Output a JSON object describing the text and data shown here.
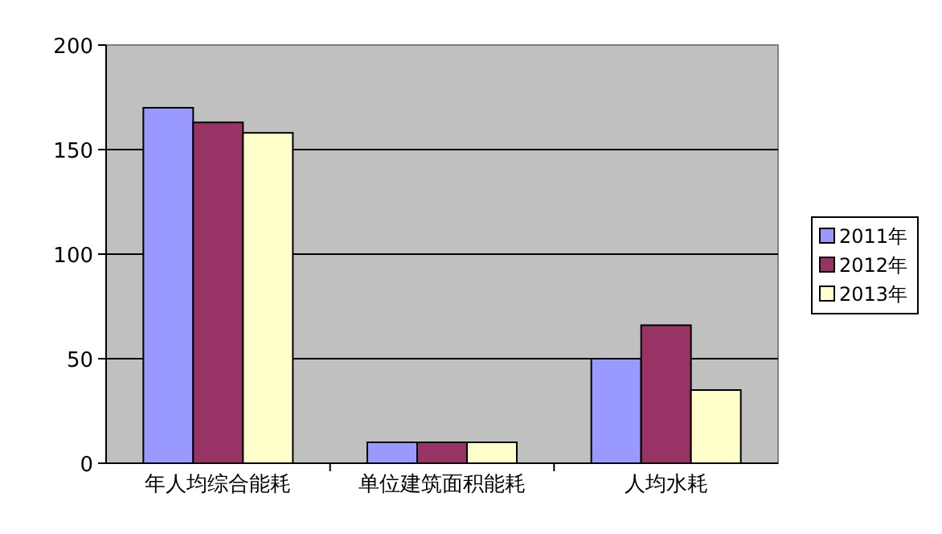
{
  "chart_data": {
    "type": "bar",
    "categories": [
      "年人均综合能耗",
      "单位建筑面积能耗",
      "人均水耗"
    ],
    "series": [
      {
        "name": "2011年",
        "color": "#9999ff",
        "values": [
          170,
          10,
          50
        ]
      },
      {
        "name": "2012年",
        "color": "#993366",
        "values": [
          163,
          10,
          66
        ]
      },
      {
        "name": "2013年",
        "color": "#ffffcc",
        "values": [
          158,
          10,
          35
        ]
      }
    ],
    "ylim": [
      0,
      200
    ],
    "yticks": [
      0,
      50,
      100,
      150,
      200
    ],
    "grid": "y",
    "legend": "right"
  }
}
